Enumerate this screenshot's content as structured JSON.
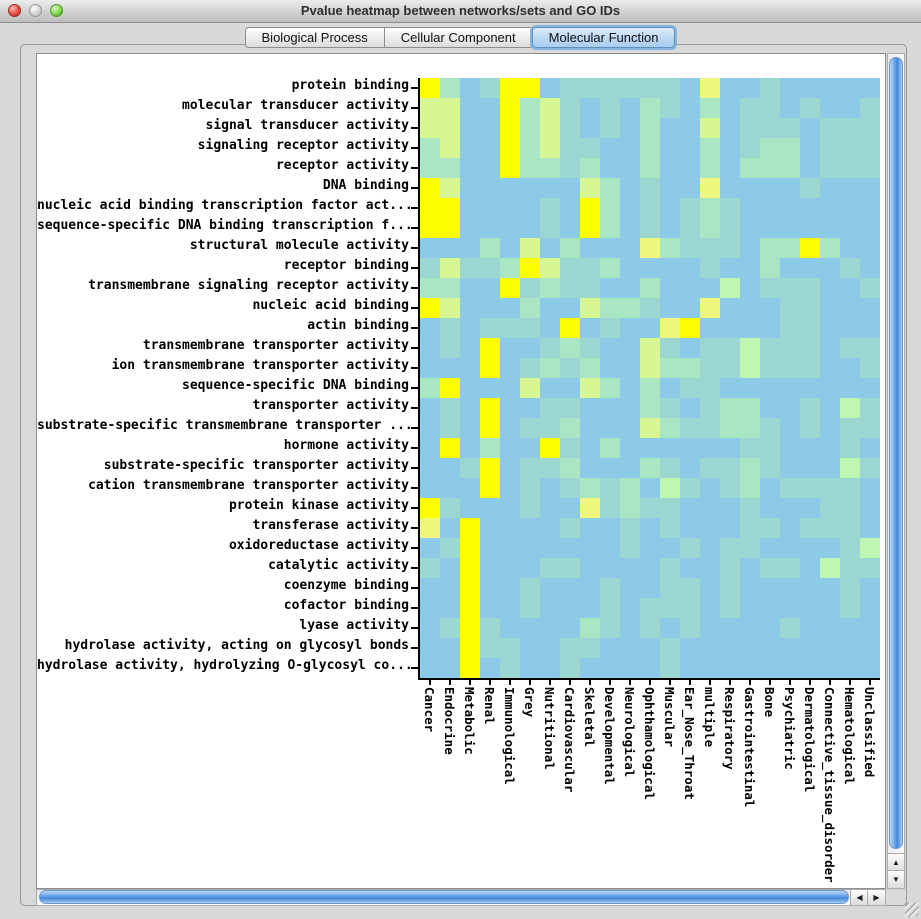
{
  "window": {
    "title": "Pvalue heatmap between networks/sets and GO IDs"
  },
  "tabs": [
    {
      "label": "Biological Process",
      "selected": false
    },
    {
      "label": "Cellular Component",
      "selected": false
    },
    {
      "label": "Molecular Function",
      "selected": true
    }
  ],
  "icons": {
    "scroll_up": "▲",
    "scroll_down": "▼",
    "scroll_left": "◀",
    "scroll_right": "▶"
  },
  "colors": {
    "cell_base_blue": "#8DCAE8",
    "significant_yellow": "#FFFF00",
    "selected_tab": "#BCD9F2",
    "scroll_thumb": "#5F9DE6"
  },
  "chart_data": {
    "type": "heatmap",
    "title": "Pvalue heatmap between networks/sets and GO IDs",
    "legend": "none",
    "grid": "off",
    "value_encoding": "blue = high p-value (not significant), yellow = low p-value (significant)",
    "rows": [
      "protein binding",
      "molecular transducer activity",
      "signal transducer activity",
      "signaling receptor activity",
      "receptor activity",
      "DNA binding",
      "nucleic acid binding transcription factor act...",
      "sequence-specific DNA binding transcription f...",
      "structural molecule activity",
      "receptor binding",
      "transmembrane signaling receptor activity",
      "nucleic acid binding",
      "actin binding",
      "transmembrane transporter activity",
      "ion transmembrane transporter activity",
      "sequence-specific DNA binding",
      "transporter activity",
      "substrate-specific transmembrane transporter ...",
      "hormone activity",
      "substrate-specific transporter activity",
      "cation transmembrane transporter activity",
      "protein kinase activity",
      "transferase activity",
      "oxidoreductase activity",
      "catalytic activity",
      "coenzyme binding",
      "cofactor binding",
      "lyase activity",
      "hydrolase activity, acting on glycosyl bonds",
      "hydrolase activity, hydrolyzing O-glycosyl co..."
    ],
    "columns": [
      "Cancer",
      "Endocrine",
      "Metabolic",
      "Renal",
      "Immunological",
      "Grey",
      "Nutritional",
      "Cardiovascular",
      "Skeletal",
      "Developmental",
      "Neurological",
      "Ophthamological",
      "Muscular",
      "Ear_Nose_Throat",
      "multiple",
      "Respiratory",
      "Gastrointestinal",
      "Bone",
      "Psychiatric",
      "Dermatological",
      "Connective_tissue_disorder",
      "Hematological",
      "Unclassified"
    ],
    "palette": {
      "b": "#8DCAE8",
      "t": "#9BD6D0",
      "g": "#A9E6C4",
      "G": "#BDF7B0",
      "p": "#D6F794",
      "P": "#EDF87C",
      "Y": "#FFFF00"
    },
    "cells": [
      "YgbtYYbttttttbPbbtbbbbb",
      "ppbbYgptbtbgtbgbttbtbbt",
      "ppbbYgptbtbgbbpbtttbttt",
      "gpbbYgpttbbgbbgbtggbttt",
      "ggbbYggtgbbgbbgbgggbttt",
      "YpbbbbbbpgbtbbPbbbbtbbb",
      "YYbbbbtbYgbtbtgtbbbbbbb",
      "YYbbbbtbYgbtbtgtbbbbbbb",
      "bbbgbpbgbbbPgtttbggYgbb",
      "tpttgYpttgbbbbtbbgbbbtb",
      "ggbbYtgttbbgbbbGbtttbbt",
      "YpbbbgbbpggtbbPbbbttbbb",
      "btbtttbYbtbbPYbbbbttbbb",
      "btbYbbtgtbbptbttGtttbtt",
      "bbbYbtgtgbbpggttGtttbbt",
      "gYbbbpbbpgbgbttbbbbbbbb",
      "btbYbbttbbbgtbtggbbtbGt",
      "btbYbttgbbbpgttggtbtbtt",
      "bYbgbbYtbgbbbbbbttbbbtb",
      "bbtYbttgbbbgtbttgtbbbGt",
      "bbbYbtbtgtgbGtbtgbttttb",
      "YtbbbtbbPtgttbbbtbbbttb",
      "PbYbbbbtbbtbtbbbttbtttb",
      "btYbbbbbbbtbbtbttbbbbtG",
      "tbYbbbttbbbbtbbtbttbGtt",
      "bbYbbtbbbtbbttbtbbbbbtb",
      "bbYbbtbbbtbtttbtbbbbbtb",
      "btYtbbbbgtbtbtbbbbtbbbb",
      "bbYttbbttbbbtbbbbbbbbbb",
      "bbYbtbbtbbbbtbbbbbbbbbb"
    ]
  }
}
